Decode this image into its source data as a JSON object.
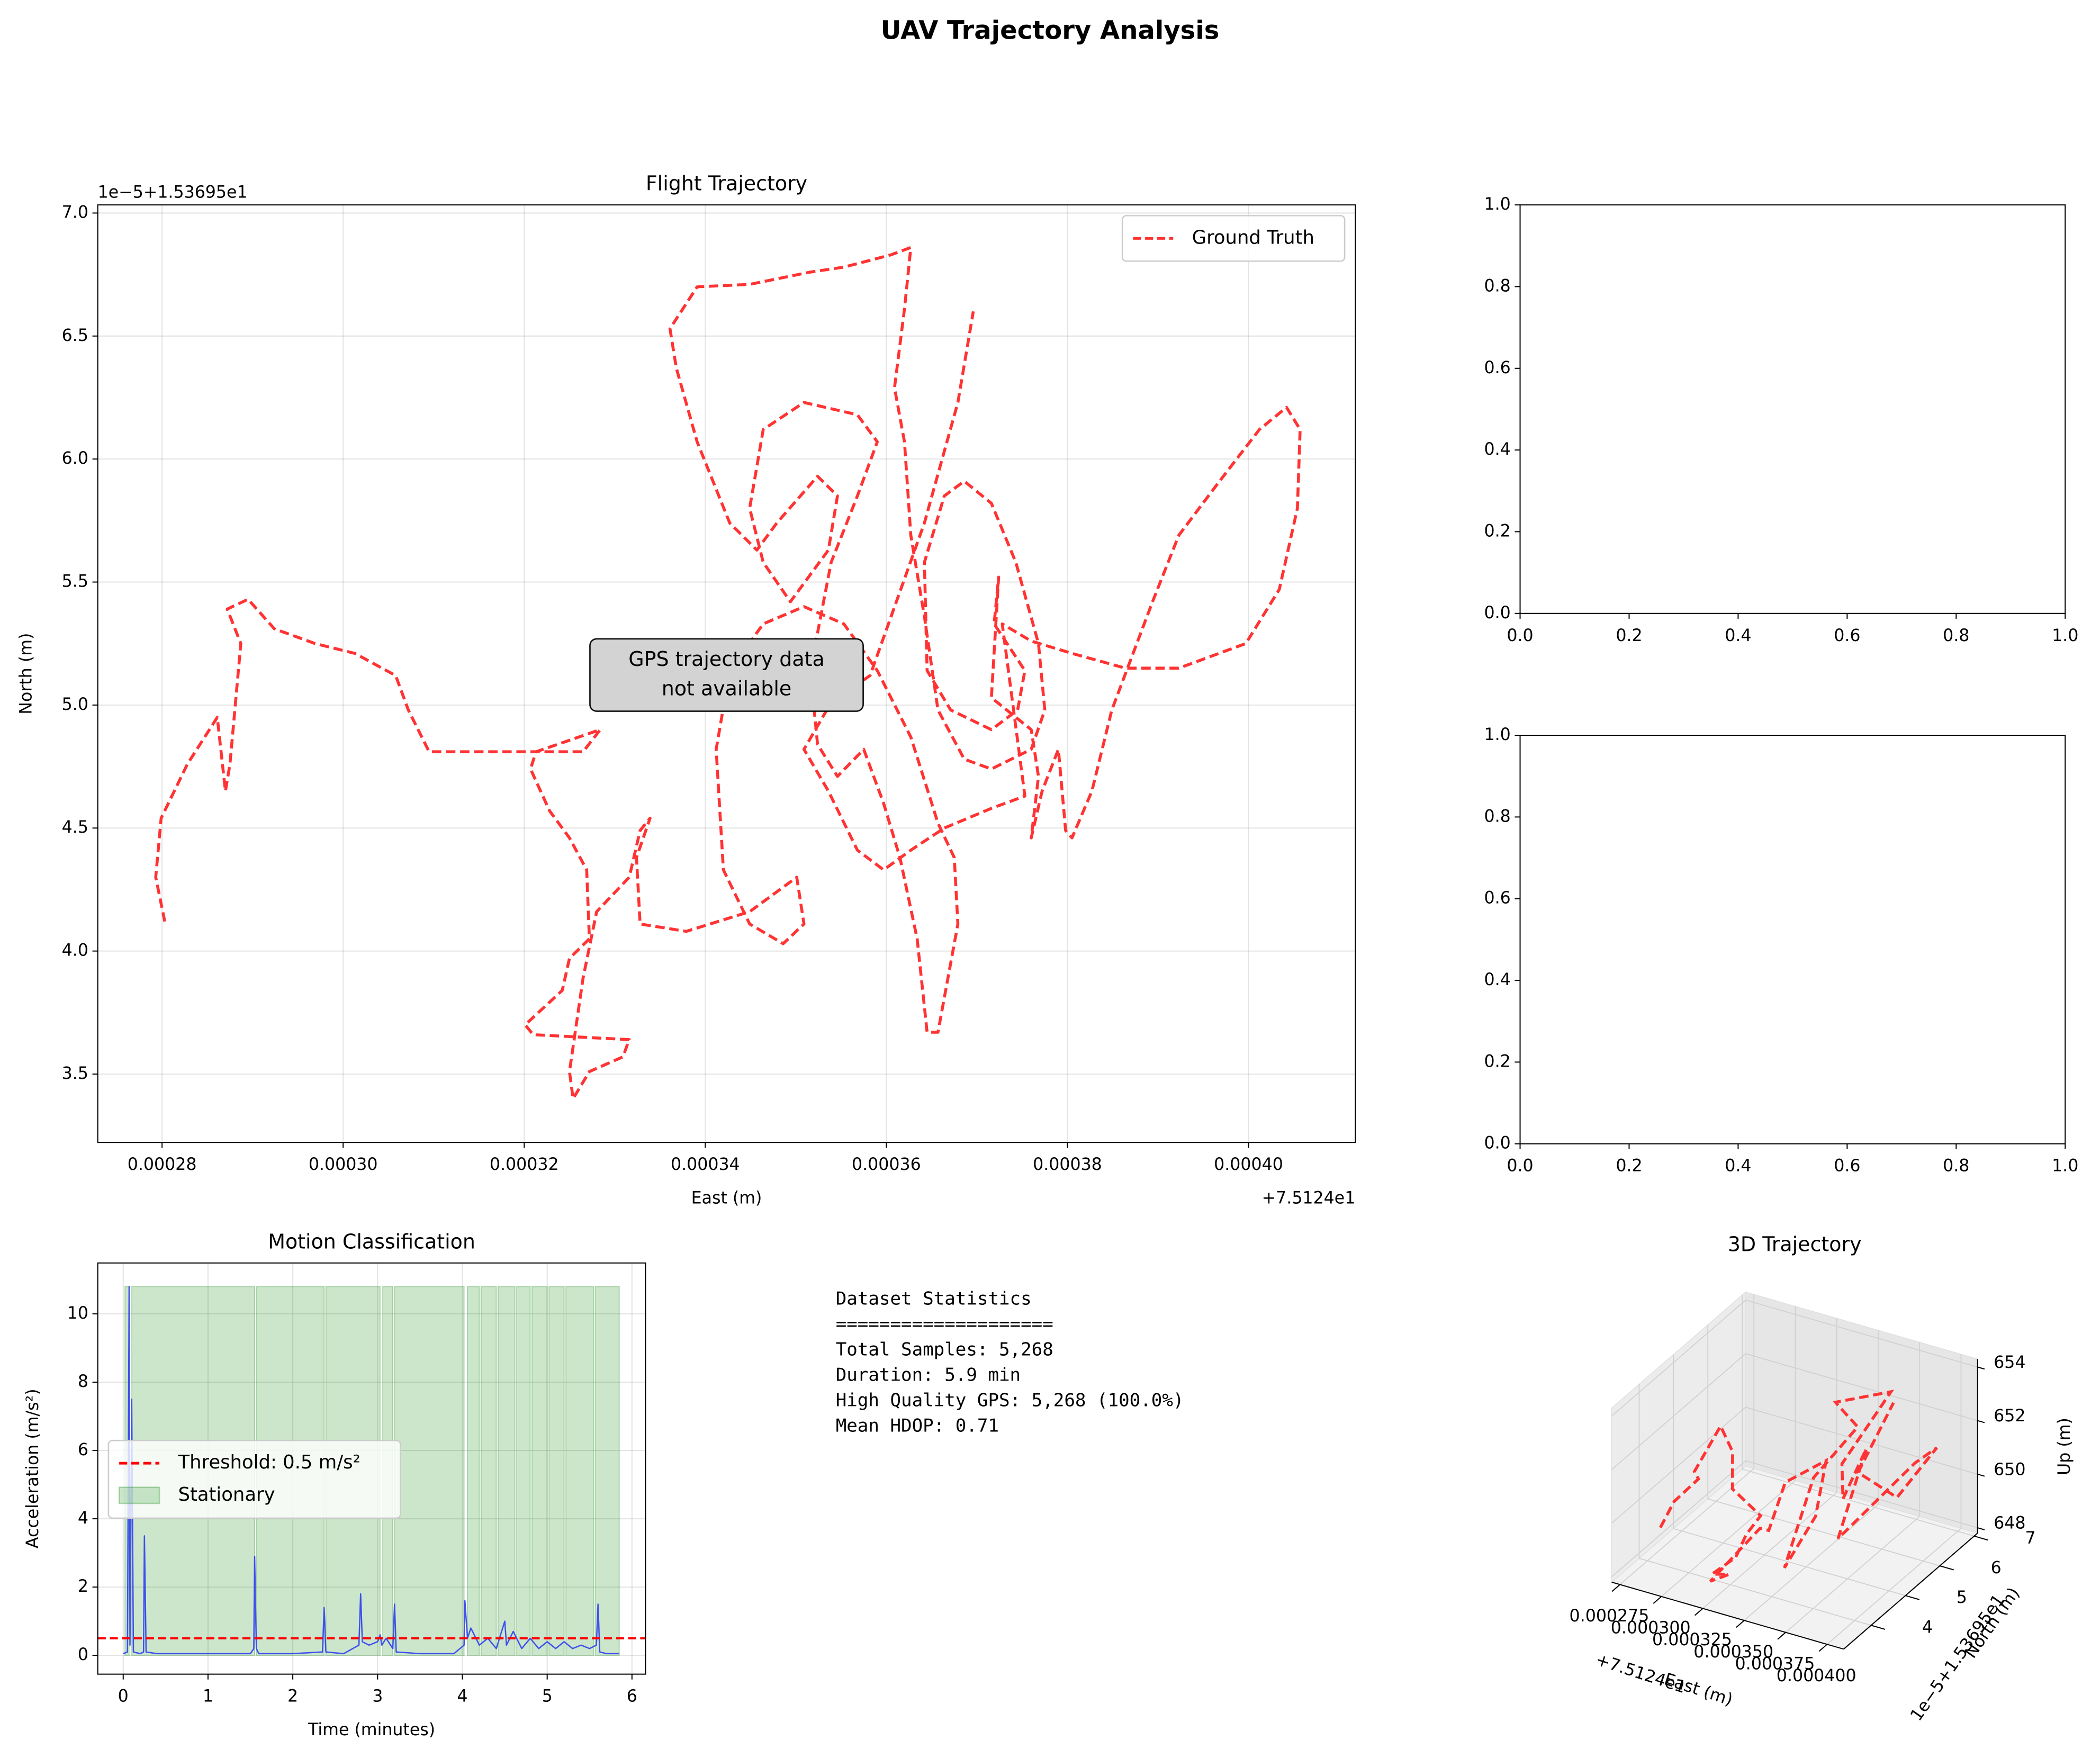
{
  "title": "UAV Trajectory Analysis",
  "chart_data": [
    {
      "type": "line",
      "title": "Flight Trajectory",
      "xlabel": "East (m)",
      "ylabel": "North (m)",
      "x_offset": "+7.5124e1",
      "y_offset": "1e−5+1.53695e1",
      "annotation": [
        "GPS trajectory data",
        "not available"
      ],
      "legend": "upper right",
      "grid": true,
      "xlim": [
        0.0002729,
        0.0004118
      ],
      "ylim": [
        3.222,
        7.033
      ],
      "xticks": [
        0.00028,
        {
          "value": 0.0003,
          "label": "0.00030"
        },
        0.00032,
        0.00034,
        0.00036,
        0.00038,
        {
          "value": 0.0004,
          "label": "0.00040"
        }
      ],
      "yticks": [
        3.5,
        {
          "value": 4,
          "label": "4.0"
        },
        4.5,
        {
          "value": 5,
          "label": "5.0"
        },
        5.5,
        {
          "value": 6,
          "label": "6.0"
        },
        6.5,
        {
          "value": 7,
          "label": "7.0"
        }
      ],
      "x": [
        0.0002803,
        0.0002793,
        0.0002799,
        0.0002828,
        0.0002861,
        0.000287,
        0.0002875,
        0.0002887,
        0.0002872,
        0.0002895,
        0.0002924,
        0.0002969,
        0.0003013,
        0.0003058,
        0.0003072,
        0.0003095,
        0.0003265,
        0.0003284,
        0.0003213,
        0.0003207,
        0.0003228,
        0.000325,
        0.0003269,
        0.0003272,
        0.000325,
        0.0003242,
        0.0003201,
        0.000321,
        0.0003316,
        0.0003309,
        0.0003272,
        0.0003254,
        0.000325,
        0.0003265,
        0.000328,
        0.0003316,
        0.0003328,
        0.0003339,
        0.0003324,
        0.0003328,
        0.0003379,
        0.0003449,
        0.0003501,
        0.0003509,
        0.0003486,
        0.0003449,
        0.000342,
        0.0003412,
        0.0003427,
        0.0003464,
        0.0003509,
        0.0003553,
        0.000359,
        0.0003627,
        0.0003657,
        0.0003675,
        0.0003679,
        0.0003657,
        0.0003645,
        0.0003634,
        0.0003615,
        0.0003597,
        0.0003575,
        0.0003546,
        0.0003524,
        0.0003516,
        0.0003539,
        0.0003568,
        0.000359,
        0.0003568,
        0.0003509,
        0.0003464,
        0.0003449,
        0.0003464,
        0.0003494,
        0.0003536,
        0.0003546,
        0.0003524,
        0.0003479,
        0.0003457,
        0.0003427,
        0.0003391,
        0.0003368,
        0.0003361,
        0.0003391,
        0.0003449,
        0.0003516,
        0.0003553,
        0.0003605,
        0.0003627,
        0.000362,
        0.0003609,
        0.000362,
        0.0003627,
        0.0003642,
        0.0003657,
        0.0003686,
        0.0003716,
        0.000376,
        0.0003775,
        0.0003768,
        0.0003743,
        0.0003716,
        0.0003686,
        0.0003664,
        0.0003642,
        0.0003645,
        0.0003671,
        0.0003716,
        0.0003745,
        0.0003753,
        0.0003719,
        0.0003724,
        0.0003716,
        0.000376,
        0.0003768,
        0.000376,
        0.0003772,
        0.000379,
        0.0003798,
        0.0003805,
        0.0003827,
        0.0003849,
        0.0003894,
        0.0003923,
        0.0003968,
        0.0004012,
        0.0004042,
        0.0004057,
        0.0004054,
        0.0004034,
        0.0003997,
        0.0003923,
        0.0003864,
        0.0003805,
        0.000376,
        0.0003728,
        0.0003753,
        0.0003716,
        0.0003664,
        0.0003627,
        0.0003597,
        0.0003568,
        0.0003536,
        0.0003509,
        0.0003539,
        0.0003582,
        0.0003642,
        0.0003679,
        0.0003696
      ],
      "series": [
        {
          "name": "Ground Truth",
          "color": "#ff3333",
          "dashed": true,
          "values": [
            4.12,
            4.3,
            4.54,
            4.76,
            4.95,
            4.65,
            4.76,
            5.25,
            5.39,
            5.43,
            5.31,
            5.25,
            5.21,
            5.12,
            4.98,
            4.81,
            4.81,
            4.9,
            4.81,
            4.74,
            4.57,
            4.46,
            4.33,
            4.05,
            3.97,
            3.84,
            3.7,
            3.66,
            3.64,
            3.57,
            3.51,
            3.4,
            3.51,
            3.89,
            4.16,
            4.3,
            4.49,
            4.54,
            4.38,
            4.11,
            4.08,
            4.16,
            4.3,
            4.11,
            4.03,
            4.11,
            4.33,
            4.82,
            5.14,
            5.33,
            5.4,
            5.33,
            5.14,
            4.87,
            4.52,
            4.38,
            4.11,
            3.67,
            3.67,
            4.05,
            4.38,
            4.6,
            4.82,
            4.71,
            4.84,
            5.14,
            5.58,
            5.85,
            6.07,
            6.18,
            6.23,
            6.12,
            5.8,
            5.58,
            5.42,
            5.63,
            5.85,
            5.93,
            5.74,
            5.63,
            5.74,
            6.07,
            6.37,
            6.53,
            6.7,
            6.71,
            6.76,
            6.78,
            6.83,
            6.86,
            6.61,
            6.29,
            6.07,
            5.69,
            5.36,
            4.98,
            4.78,
            4.74,
            4.82,
            4.98,
            5.25,
            5.58,
            5.82,
            5.91,
            5.85,
            5.58,
            5.14,
            4.98,
            4.9,
            4.98,
            5.14,
            5.33,
            5.52,
            5.03,
            4.9,
            4.71,
            4.46,
            4.65,
            4.82,
            4.49,
            4.46,
            4.65,
            4.98,
            5.42,
            5.69,
            5.91,
            6.12,
            6.21,
            6.12,
            5.8,
            5.47,
            5.25,
            5.15,
            5.15,
            5.21,
            5.26,
            5.33,
            4.63,
            4.58,
            4.5,
            4.41,
            4.33,
            4.41,
            4.65,
            4.82,
            5.01,
            5.12,
            5.74,
            6.23,
            6.6
          ]
        }
      ]
    },
    {
      "type": "empty",
      "xlim": [
        0,
        1
      ],
      "ylim": [
        0,
        1
      ],
      "xticks": [
        {
          "value": 0,
          "label": "0.0"
        },
        0.2,
        0.4,
        0.6,
        0.8,
        {
          "value": 1,
          "label": "1.0"
        }
      ],
      "yticks": [
        {
          "value": 0,
          "label": "0.0"
        },
        0.2,
        0.4,
        0.6,
        0.8,
        {
          "value": 1,
          "label": "1.0"
        }
      ]
    },
    {
      "type": "empty",
      "xlim": [
        0,
        1
      ],
      "ylim": [
        0,
        1
      ],
      "xticks": [
        {
          "value": 0,
          "label": "0.0"
        },
        0.2,
        0.4,
        0.6,
        0.8,
        {
          "value": 1,
          "label": "1.0"
        }
      ],
      "yticks": [
        {
          "value": 0,
          "label": "0.0"
        },
        0.2,
        0.4,
        0.6,
        0.8,
        {
          "value": 1,
          "label": "1.0"
        }
      ]
    },
    {
      "type": "line",
      "title": "Motion Classification",
      "xlabel": "Time (minutes)",
      "ylabel": "Acceleration (m/s²)",
      "legend": "center left",
      "grid": true,
      "xlim": [
        -0.3,
        6.16
      ],
      "ylim": [
        -0.55,
        11.49
      ],
      "xticks": [
        0,
        1,
        2,
        3,
        4,
        5,
        6
      ],
      "yticks": [
        0,
        2,
        4,
        6,
        8,
        10
      ],
      "stationary": {
        "name": "Stationary",
        "color": "green",
        "top": 10.8,
        "spans": [
          [
            0.02,
            0.07
          ],
          [
            0.1,
            1.55
          ],
          [
            1.57,
            2.37
          ],
          [
            2.39,
            3.03
          ],
          [
            3.06,
            3.18
          ],
          [
            3.2,
            4.02
          ],
          [
            4.06,
            4.2
          ],
          [
            4.22,
            4.4
          ],
          [
            4.42,
            4.62
          ],
          [
            4.64,
            4.8
          ],
          [
            4.82,
            5.0
          ],
          [
            5.02,
            5.2
          ],
          [
            5.22,
            5.55
          ],
          [
            5.57,
            5.85
          ]
        ]
      },
      "threshold": {
        "name": "Threshold: 0.5 m/s²",
        "value": 0.5,
        "color": "red"
      },
      "x": [
        0,
        0.05,
        0.07,
        0.08,
        0.1,
        0.12,
        0.2,
        0.24,
        0.25,
        0.27,
        0.4,
        0.8,
        1.2,
        1.5,
        1.54,
        1.55,
        1.57,
        1.6,
        2.0,
        2.35,
        2.37,
        2.39,
        2.6,
        2.78,
        2.8,
        2.82,
        2.9,
        3.0,
        3.03,
        3.05,
        3.1,
        3.18,
        3.2,
        3.22,
        3.5,
        3.9,
        4.02,
        4.03,
        4.06,
        4.1,
        4.2,
        4.3,
        4.4,
        4.5,
        4.52,
        4.6,
        4.7,
        4.8,
        4.9,
        5.0,
        5.1,
        5.2,
        5.3,
        5.4,
        5.5,
        5.58,
        5.6,
        5.62,
        5.7,
        5.8,
        5.85
      ],
      "series": [
        {
          "color": "#2f3ff0",
          "values": [
            0.05,
            0.1,
            10.8,
            0.3,
            7.5,
            0.1,
            0.05,
            0.1,
            3.5,
            0.1,
            0.05,
            0.05,
            0.05,
            0.05,
            0.2,
            2.9,
            0.2,
            0.05,
            0.05,
            0.1,
            1.4,
            0.1,
            0.05,
            0.3,
            1.8,
            0.4,
            0.3,
            0.4,
            0.6,
            0.3,
            0.5,
            0.2,
            1.5,
            0.1,
            0.05,
            0.05,
            0.3,
            1.6,
            0.5,
            0.8,
            0.3,
            0.5,
            0.2,
            1.0,
            0.3,
            0.7,
            0.2,
            0.5,
            0.2,
            0.4,
            0.2,
            0.4,
            0.2,
            0.3,
            0.2,
            0.3,
            1.5,
            0.1,
            0.05,
            0.05,
            0.05
          ]
        }
      ]
    },
    {
      "type": "line3d",
      "title": "3D Trajectory",
      "xlabel": "East (m)",
      "ylabel": "North (m)",
      "zlabel": "Up (m)",
      "x_offset": "+7.5124e1",
      "y_offset": "1e−5+1.53695e1",
      "xlim": [
        0.00027,
        0.00041
      ],
      "ylim": [
        3.2,
        7.1
      ],
      "zlim": [
        647.8,
        654.3
      ],
      "xticks": [
        0.000275,
        {
          "value": 0.0003,
          "label": "0.000300"
        },
        0.000325,
        {
          "value": 0.00035,
          "label": "0.000350"
        },
        0.000375,
        {
          "value": 0.0004,
          "label": "0.000400"
        }
      ],
      "yticks": [
        4,
        5,
        6,
        7
      ],
      "zticks": [
        648,
        650,
        652,
        654
      ],
      "x": [
        0.0002803,
        0.0002799,
        0.0002861,
        0.0002875,
        0.0002895,
        0.0003013,
        0.0003095,
        0.0003265,
        0.0003228,
        0.0003272,
        0.000321,
        0.0003316,
        0.0003254,
        0.0003328,
        0.0003449,
        0.0003412,
        0.0003553,
        0.0003657,
        0.0003645,
        0.0003516,
        0.000359,
        0.0003464,
        0.0003361,
        0.0003627,
        0.0003642,
        0.000376,
        0.0003743,
        0.0003805,
        0.0003968,
        0.0004057,
        0.0003997,
        0.000376,
        0.0003696
      ],
      "y": [
        4.12,
        4.54,
        4.95,
        4.76,
        5.43,
        5.21,
        4.81,
        4.81,
        4.57,
        4.05,
        3.66,
        3.64,
        3.4,
        4.49,
        4.16,
        4.82,
        5.33,
        4.52,
        3.67,
        5.14,
        6.07,
        6.12,
        6.53,
        6.86,
        5.36,
        4.82,
        5.58,
        4.46,
        5.91,
        6.12,
        5.25,
        5.26,
        6.6
      ],
      "series": [
        {
          "color": "#ff3333",
          "dashed": true,
          "values": [
            649,
            649.5,
            650,
            650.5,
            651.5,
            651,
            650.2,
            649.5,
            649,
            648.8,
            648.5,
            648.7,
            648.6,
            649.5,
            650,
            651,
            651.5,
            650.5,
            649.5,
            651,
            652,
            652.5,
            652,
            652.5,
            651.5,
            651,
            652,
            650,
            651.5,
            652,
            651,
            651.5,
            652.5
          ]
        }
      ]
    }
  ],
  "stats": {
    "title": "Dataset Statistics",
    "rule": "====================",
    "lines": [
      "Total Samples: 5,268",
      "Duration: 5.9 min",
      "High Quality GPS: 5,268 (100.0%)",
      "Mean HDOP: 0.71"
    ]
  }
}
